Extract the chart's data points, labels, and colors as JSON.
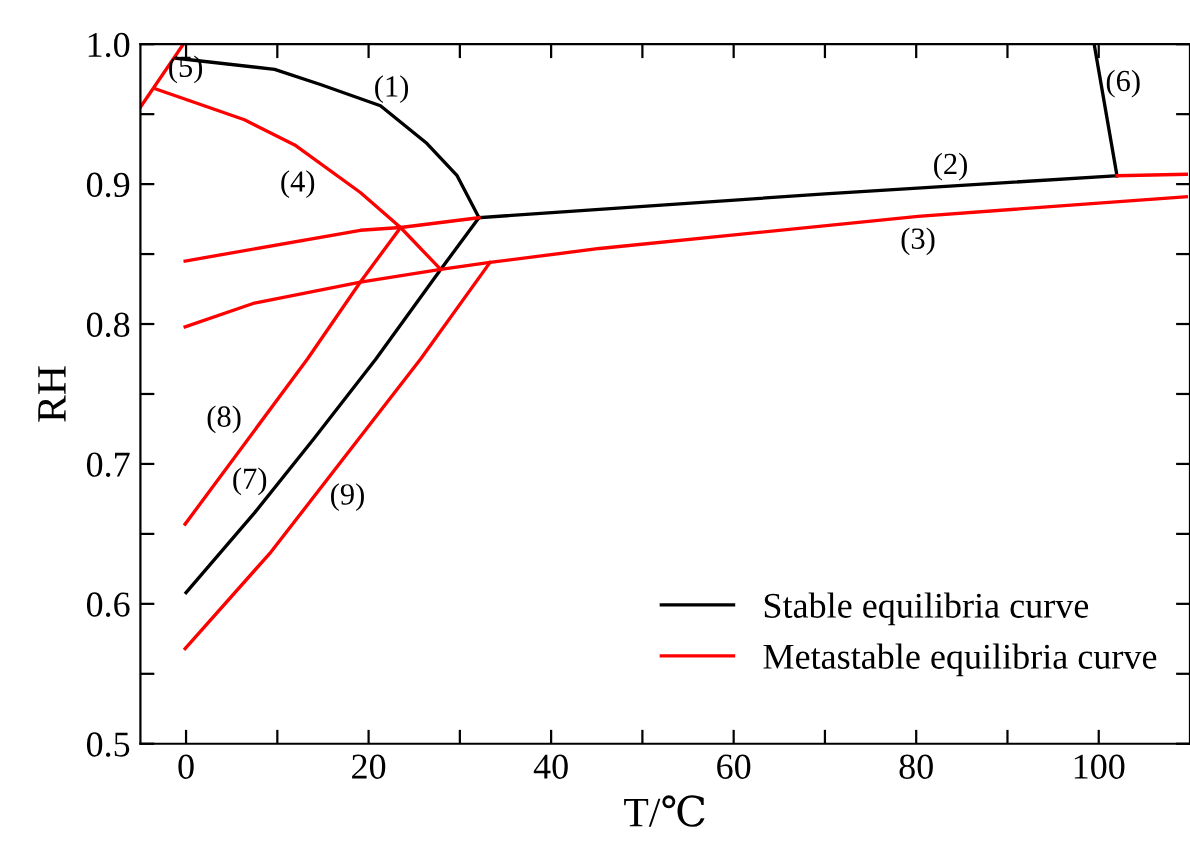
{
  "chart_data": {
    "type": "line",
    "xlabel": "T/℃",
    "ylabel": "RH",
    "xlim": [
      -5,
      110
    ],
    "ylim": [
      0.5,
      1.0
    ],
    "xticks": [
      0,
      {
        "value": 10,
        "label": null
      },
      20,
      {
        "value": 30,
        "label": null
      },
      40,
      {
        "value": 50,
        "label": null
      },
      60,
      {
        "value": 70,
        "label": null
      },
      80,
      {
        "value": 90,
        "label": null
      },
      100
    ],
    "yticks": [
      {
        "value": 0.5,
        "label": "0.5"
      },
      {
        "value": 0.55,
        "label": null
      },
      {
        "value": 0.6,
        "label": "0.6"
      },
      {
        "value": 0.65,
        "label": null
      },
      {
        "value": 0.7,
        "label": "0.7"
      },
      {
        "value": 0.75,
        "label": null
      },
      {
        "value": 0.8,
        "label": "0.8"
      },
      {
        "value": 0.85,
        "label": null
      },
      {
        "value": 0.9,
        "label": "0.9"
      },
      {
        "value": 0.95,
        "label": null
      },
      {
        "value": 1.0,
        "label": "1.0"
      }
    ],
    "legend": "bottom right",
    "grid": false,
    "marker": "none",
    "line_style": "solid",
    "series": [
      {
        "name": "Stable equilibria curve",
        "color": "#000000",
        "x": [
          -1.1,
          9.7,
          14.8,
          21.3,
          26.4,
          29.7,
          32.1
        ],
        "values": [
          0.99,
          0.982,
          0.971,
          0.956,
          0.929,
          0.906,
          0.876
        ]
      },
      {
        "color": "#000000",
        "x": [
          32.1,
          45.3,
          70,
          102
        ],
        "values": [
          0.876,
          0.882,
          0.893,
          0.906
        ]
      },
      {
        "color": "#000000",
        "x": [
          102,
          99.5
        ],
        "values": [
          0.906,
          1.0
        ]
      },
      {
        "color": "#000000",
        "x": [
          0,
          7.5,
          14.0,
          20.8,
          27.9,
          32.1
        ],
        "values": [
          0.608,
          0.665,
          0.718,
          0.775,
          0.839,
          0.876
        ]
      },
      {
        "name": "Metastable equilibria curve",
        "color": "#ff0000",
        "x": [
          102,
          109.6
        ],
        "values": [
          0.906,
          0.907
        ]
      },
      {
        "color": "#ff0000",
        "x": [
          -0.1,
          7.5,
          19.1,
          27.9,
          33.3,
          45.3,
          80.2,
          109.6
        ],
        "values": [
          0.798,
          0.815,
          0.83,
          0.839,
          0.844,
          0.854,
          0.877,
          0.891
        ]
      },
      {
        "color": "#ff0000",
        "x": [
          -0.1,
          19.1,
          23.5,
          32.1
        ],
        "values": [
          0.845,
          0.867,
          0.869,
          0.876
        ]
      },
      {
        "color": "#ff0000",
        "x": [
          -3.3,
          6.4,
          11.9,
          19.1,
          23.5,
          27.9
        ],
        "values": [
          0.968,
          0.946,
          0.928,
          0.894,
          0.869,
          0.839
        ]
      },
      {
        "color": "#ff0000",
        "x": [
          -5,
          -0.3
        ],
        "values": [
          0.955,
          1.0
        ]
      },
      {
        "color": "#ff0000",
        "x": [
          -0.1,
          13.3,
          19.1,
          23.5
        ],
        "values": [
          0.657,
          0.775,
          0.83,
          0.869
        ]
      },
      {
        "color": "#ff0000",
        "x": [
          -0.1,
          9.3,
          25.7,
          33.3
        ],
        "values": [
          0.568,
          0.637,
          0.775,
          0.844
        ]
      }
    ],
    "annotations": [
      "(1)",
      "(2)",
      "(3)",
      "(4)",
      "(5)",
      "(6)",
      "(7)",
      "(8)",
      "(9)"
    ]
  }
}
